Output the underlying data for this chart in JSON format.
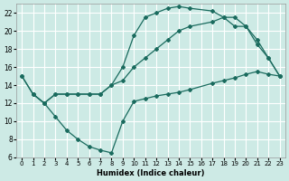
{
  "xlabel": "Humidex (Indice chaleur)",
  "bg_color": "#cdeae5",
  "grid_color": "#ffffff",
  "line_color": "#1a6b5e",
  "xlim": [
    -0.5,
    23.5
  ],
  "ylim": [
    6,
    23
  ],
  "xticks": [
    0,
    1,
    2,
    3,
    4,
    5,
    6,
    7,
    8,
    9,
    10,
    11,
    12,
    13,
    14,
    15,
    16,
    17,
    18,
    19,
    20,
    21,
    22,
    23
  ],
  "yticks": [
    6,
    8,
    10,
    12,
    14,
    16,
    18,
    20,
    22
  ],
  "line1_x": [
    0,
    1,
    2,
    3,
    4,
    5,
    6,
    7,
    8,
    9,
    10,
    11,
    12,
    13,
    14,
    15,
    17,
    18,
    19,
    20,
    21,
    22,
    23
  ],
  "line1_y": [
    15,
    13,
    12,
    13,
    13,
    13,
    13,
    13,
    14,
    16,
    19.5,
    21.5,
    22,
    22.5,
    22.7,
    22.5,
    22.2,
    21.5,
    20.5,
    20.5,
    18.5,
    17,
    15
  ],
  "line2_x": [
    0,
    1,
    2,
    3,
    4,
    5,
    6,
    7,
    8,
    9,
    10,
    11,
    12,
    13,
    14,
    15,
    17,
    18,
    19,
    20,
    21,
    22,
    23
  ],
  "line2_y": [
    15,
    13,
    12,
    13,
    13,
    13,
    13,
    13,
    14,
    14.5,
    16,
    17,
    18,
    19,
    20,
    20.5,
    21,
    21.5,
    21.5,
    20.5,
    19,
    17,
    15
  ],
  "line3_x": [
    1,
    2,
    3,
    4,
    5,
    6,
    7,
    8,
    9,
    10,
    11,
    12,
    13,
    14,
    15,
    17,
    18,
    19,
    20,
    21,
    22,
    23
  ],
  "line3_y": [
    13,
    12,
    10.5,
    9,
    8,
    7.2,
    6.8,
    6.5,
    10,
    12.2,
    12.5,
    12.8,
    13,
    13.2,
    13.5,
    14.2,
    14.5,
    14.8,
    15.2,
    15.5,
    15.2,
    15
  ]
}
